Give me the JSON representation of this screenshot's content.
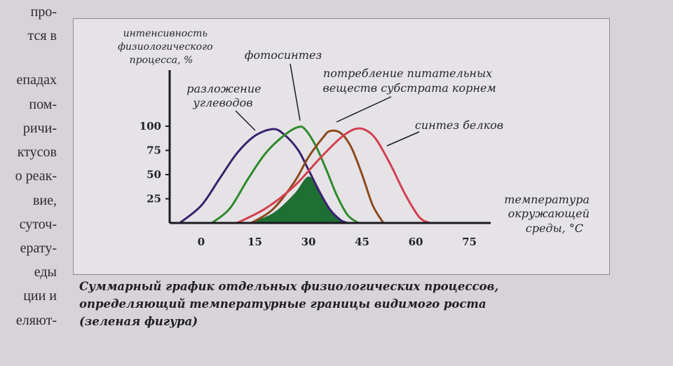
{
  "page_text": {
    "left_column_lines": [
      "про-",
      "тся в",
      "епадах",
      "пом-",
      "ричи-",
      "ктусов",
      "о реак-",
      "вие,",
      "суточ-",
      "ерату-",
      "еды",
      "ции и",
      "еляют-"
    ]
  },
  "caption": {
    "lines": [
      "Суммарный график отдельных физиологических процессов,",
      "определяющий температурные границы видимого роста",
      "(зеленая фигура)"
    ]
  },
  "chart_data": {
    "type": "line",
    "title": "",
    "ylabel_lines": [
      "интенсивность",
      "физиологического",
      "процесса, %"
    ],
    "xlabel_lines": [
      "температура",
      "окружающей",
      "среды, °С"
    ],
    "x_ticks": [
      "0",
      "15",
      "30",
      "45",
      "60",
      "75"
    ],
    "y_ticks": [
      "100",
      "75",
      "50",
      "25"
    ],
    "xlim": [
      -7,
      80
    ],
    "ylim": [
      0,
      100
    ],
    "grid": false,
    "series": [
      {
        "name": "разложение углеводов",
        "label_lines": [
          "разложение",
          "углеводов"
        ],
        "color": "#3a2270",
        "x": [
          -6,
          0,
          5,
          10,
          15,
          20,
          23,
          27,
          30,
          33,
          36,
          39,
          41
        ],
        "y": [
          0,
          18,
          45,
          72,
          90,
          97,
          92,
          76,
          55,
          33,
          14,
          3,
          0
        ]
      },
      {
        "name": "фотосинтез",
        "label_lines": [
          "фотосинтез"
        ],
        "color": "#2d8a2a",
        "x": [
          3,
          8,
          13,
          18,
          23,
          27,
          29,
          32,
          35,
          38,
          41,
          44
        ],
        "y": [
          0,
          15,
          45,
          72,
          90,
          99,
          97,
          80,
          55,
          28,
          8,
          0
        ]
      },
      {
        "name": "потребление питательных веществ субстрата корнем",
        "label_lines": [
          "потребление питательных",
          "веществ субстрата корнем"
        ],
        "color": "#8a4a1e",
        "x": [
          14,
          20,
          26,
          30,
          34,
          36,
          39,
          42,
          45,
          48,
          51
        ],
        "y": [
          0,
          14,
          42,
          68,
          88,
          95,
          93,
          78,
          50,
          18,
          0
        ]
      },
      {
        "name": "синтез белков",
        "label_lines": [
          "синтез белков"
        ],
        "color": "#d3404e",
        "x": [
          10,
          18,
          26,
          33,
          39,
          43,
          46,
          49,
          53,
          57,
          61,
          64
        ],
        "y": [
          0,
          15,
          38,
          66,
          88,
          97,
          96,
          86,
          60,
          30,
          6,
          0
        ]
      }
    ],
    "green_region": {
      "name": "зеленая фигура",
      "color": "#1f6e34",
      "x": [
        13,
        20,
        26,
        30,
        33,
        36,
        39,
        41
      ],
      "y": [
        0,
        10,
        30,
        48,
        33,
        14,
        3,
        0
      ]
    }
  }
}
